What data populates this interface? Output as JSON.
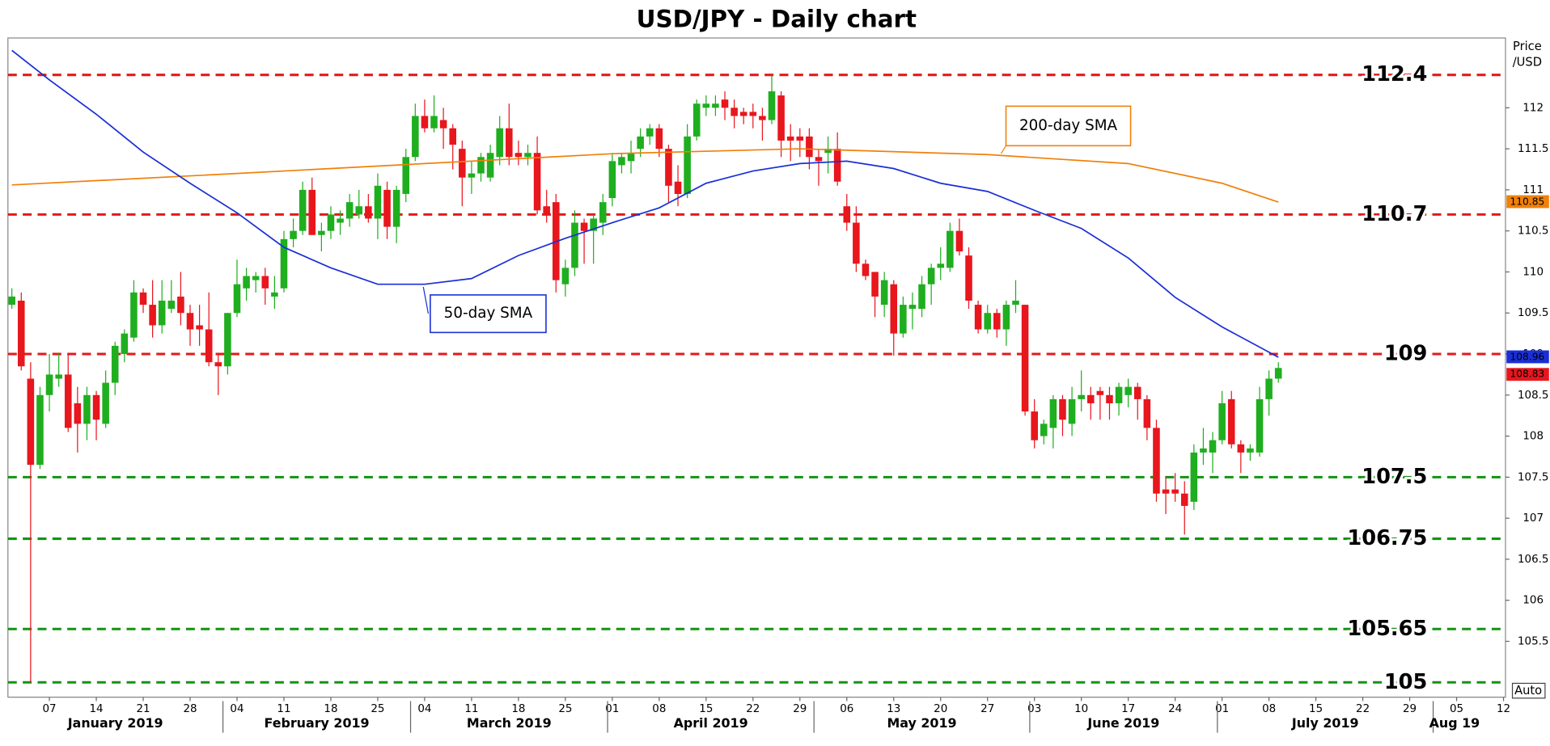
{
  "chart_data": {
    "type": "candlestick",
    "title": "USD/JPY - Daily chart",
    "y_label_lines": [
      "Price",
      "/USD"
    ],
    "scale_mode": "Auto",
    "up_color": "#1fae1f",
    "down_color": "#e8161d",
    "x": [
      "2019-01-01",
      "2019-01-02",
      "2019-01-03",
      "2019-01-04",
      "2019-01-07",
      "2019-01-08",
      "2019-01-09",
      "2019-01-10",
      "2019-01-11",
      "2019-01-14",
      "2019-01-15",
      "2019-01-16",
      "2019-01-17",
      "2019-01-18",
      "2019-01-21",
      "2019-01-22",
      "2019-01-23",
      "2019-01-24",
      "2019-01-25",
      "2019-01-28",
      "2019-01-29",
      "2019-01-30",
      "2019-01-31",
      "2019-02-01",
      "2019-02-04",
      "2019-02-05",
      "2019-02-06",
      "2019-02-07",
      "2019-02-08",
      "2019-02-11",
      "2019-02-12",
      "2019-02-13",
      "2019-02-14",
      "2019-02-15",
      "2019-02-18",
      "2019-02-19",
      "2019-02-20",
      "2019-02-21",
      "2019-02-22",
      "2019-02-25",
      "2019-02-26",
      "2019-02-27",
      "2019-02-28",
      "2019-03-01",
      "2019-03-04",
      "2019-03-05",
      "2019-03-06",
      "2019-03-07",
      "2019-03-08",
      "2019-03-11",
      "2019-03-12",
      "2019-03-13",
      "2019-03-14",
      "2019-03-15",
      "2019-03-18",
      "2019-03-19",
      "2019-03-20",
      "2019-03-21",
      "2019-03-22",
      "2019-03-25",
      "2019-03-26",
      "2019-03-27",
      "2019-03-28",
      "2019-03-29",
      "2019-04-01",
      "2019-04-02",
      "2019-04-03",
      "2019-04-04",
      "2019-04-05",
      "2019-04-08",
      "2019-04-09",
      "2019-04-10",
      "2019-04-11",
      "2019-04-12",
      "2019-04-15",
      "2019-04-16",
      "2019-04-17",
      "2019-04-18",
      "2019-04-19",
      "2019-04-22",
      "2019-04-23",
      "2019-04-24",
      "2019-04-25",
      "2019-04-26",
      "2019-04-29",
      "2019-04-30",
      "2019-05-01",
      "2019-05-02",
      "2019-05-03",
      "2019-05-06",
      "2019-05-07",
      "2019-05-08",
      "2019-05-09",
      "2019-05-10",
      "2019-05-13",
      "2019-05-14",
      "2019-05-15",
      "2019-05-16",
      "2019-05-17",
      "2019-05-20",
      "2019-05-21",
      "2019-05-22",
      "2019-05-23",
      "2019-05-24",
      "2019-05-27",
      "2019-05-28",
      "2019-05-29",
      "2019-05-30",
      "2019-05-31",
      "2019-06-03",
      "2019-06-04",
      "2019-06-05",
      "2019-06-06",
      "2019-06-07",
      "2019-06-10",
      "2019-06-11",
      "2019-06-12",
      "2019-06-13",
      "2019-06-14",
      "2019-06-17",
      "2019-06-18",
      "2019-06-19",
      "2019-06-20",
      "2019-06-21",
      "2019-06-24",
      "2019-06-25",
      "2019-06-26",
      "2019-06-27",
      "2019-06-28",
      "2019-07-01",
      "2019-07-02",
      "2019-07-03",
      "2019-07-04",
      "2019-07-05",
      "2019-07-08",
      "2019-07-09"
    ],
    "open": [
      109.6,
      109.65,
      108.7,
      107.65,
      108.5,
      108.7,
      108.75,
      108.4,
      108.15,
      108.5,
      108.15,
      108.65,
      109.0,
      109.2,
      109.75,
      109.6,
      109.35,
      109.55,
      109.7,
      109.5,
      109.35,
      109.3,
      108.9,
      108.85,
      109.5,
      109.8,
      109.9,
      109.95,
      109.7,
      109.8,
      110.4,
      110.5,
      111.0,
      110.45,
      110.5,
      110.6,
      110.65,
      110.7,
      110.8,
      110.65,
      111.0,
      110.55,
      110.95,
      111.4,
      111.9,
      111.75,
      111.85,
      111.75,
      111.5,
      111.15,
      111.2,
      111.15,
      111.4,
      111.75,
      111.45,
      111.4,
      111.45,
      110.8,
      110.85,
      109.85,
      110.05,
      110.6,
      110.5,
      110.6,
      110.9,
      111.3,
      111.35,
      111.5,
      111.65,
      111.75,
      111.5,
      111.1,
      110.95,
      111.65,
      112.0,
      112.0,
      112.1,
      112.0,
      111.95,
      111.95,
      111.9,
      111.85,
      112.15,
      111.65,
      111.65,
      111.65,
      111.4,
      111.45,
      111.5,
      110.8,
      110.6,
      110.1,
      110.0,
      109.6,
      109.85,
      109.25,
      109.55,
      109.55,
      109.85,
      110.05,
      110.05,
      110.5,
      110.2,
      109.6,
      109.3,
      109.5,
      109.3,
      109.6,
      109.6,
      108.3,
      108.0,
      108.1,
      108.45,
      108.15,
      108.45,
      108.5,
      108.55,
      108.5,
      108.4,
      108.5,
      108.6,
      108.45,
      108.1,
      107.35,
      107.35,
      107.3,
      107.2,
      107.8,
      107.8,
      107.95,
      108.45,
      107.9,
      107.8,
      107.8,
      108.45,
      108.7
    ],
    "high": [
      109.8,
      109.75,
      108.9,
      108.6,
      109.0,
      109.0,
      109.0,
      108.6,
      108.6,
      108.55,
      108.8,
      109.15,
      109.3,
      109.9,
      109.8,
      109.9,
      109.9,
      109.9,
      110.0,
      109.6,
      109.6,
      109.75,
      109.0,
      109.5,
      110.15,
      110.05,
      110.0,
      110.05,
      109.95,
      110.5,
      110.65,
      111.1,
      111.15,
      110.6,
      110.8,
      110.75,
      110.95,
      111.0,
      110.95,
      111.2,
      111.1,
      111.05,
      111.5,
      112.05,
      112.1,
      112.15,
      112.0,
      111.8,
      111.6,
      111.35,
      111.45,
      111.55,
      111.9,
      112.05,
      111.6,
      111.55,
      111.65,
      111.0,
      110.95,
      110.15,
      110.75,
      110.65,
      110.7,
      110.95,
      111.45,
      111.45,
      111.6,
      111.75,
      111.8,
      111.8,
      111.55,
      111.3,
      111.8,
      112.1,
      112.15,
      112.15,
      112.2,
      112.1,
      112.0,
      112.05,
      112.0,
      112.4,
      112.2,
      111.8,
      111.75,
      111.75,
      111.5,
      111.65,
      111.7,
      110.95,
      110.8,
      110.15,
      110.0,
      110.0,
      109.9,
      109.7,
      109.75,
      109.95,
      110.1,
      110.3,
      110.6,
      110.65,
      110.3,
      109.65,
      109.6,
      109.55,
      109.65,
      109.9,
      109.6,
      108.45,
      108.2,
      108.5,
      108.5,
      108.6,
      108.8,
      108.6,
      108.6,
      108.6,
      108.65,
      108.7,
      108.65,
      108.5,
      108.2,
      107.5,
      107.55,
      107.45,
      107.9,
      108.1,
      108.05,
      108.55,
      108.55,
      107.95,
      107.9,
      108.6,
      108.8,
      108.9
    ],
    "low": [
      109.55,
      108.8,
      105,
      107.6,
      108.3,
      108.6,
      108.05,
      107.8,
      107.95,
      107.95,
      108.1,
      108.5,
      108.9,
      109.15,
      109.5,
      109.2,
      109.25,
      109.5,
      109.35,
      109.1,
      109.1,
      108.85,
      108.5,
      108.75,
      109.45,
      109.65,
      109.75,
      109.6,
      109.55,
      109.75,
      110.3,
      110.45,
      110.45,
      110.25,
      110.4,
      110.45,
      110.55,
      110.65,
      110.6,
      110.4,
      110.4,
      110.35,
      110.85,
      111.35,
      111.7,
      111.7,
      111.5,
      111.25,
      110.8,
      110.95,
      111.1,
      111.1,
      111.3,
      111.3,
      111.3,
      111.3,
      110.7,
      110.6,
      109.75,
      109.7,
      109.95,
      110.1,
      110.1,
      110.45,
      110.8,
      111.2,
      111.2,
      111.4,
      111.55,
      111.4,
      110.85,
      110.8,
      110.9,
      111.6,
      111.9,
      111.9,
      111.85,
      111.75,
      111.8,
      111.75,
      111.6,
      111.8,
      111.4,
      111.35,
      111.4,
      111.25,
      111.05,
      111.2,
      111.05,
      110.5,
      110.0,
      109.9,
      109.45,
      109.45,
      108.98,
      109.2,
      109.3,
      109.45,
      109.6,
      109.9,
      110.0,
      110.2,
      109.55,
      109.25,
      109.25,
      109.2,
      109.1,
      109.5,
      108.25,
      107.85,
      107.9,
      107.85,
      108.0,
      108.0,
      108.3,
      108.2,
      108.2,
      108.2,
      108.25,
      108.35,
      108.2,
      107.95,
      107.2,
      107.05,
      107.2,
      106.8,
      107.1,
      107.65,
      107.55,
      107.9,
      107.85,
      107.55,
      107.7,
      107.75,
      108.25,
      108.65
    ],
    "close": [
      109.7,
      108.85,
      107.65,
      108.5,
      108.75,
      108.75,
      108.1,
      108.15,
      108.5,
      108.2,
      108.65,
      109.1,
      109.25,
      109.75,
      109.6,
      109.35,
      109.65,
      109.65,
      109.5,
      109.3,
      109.3,
      108.9,
      108.85,
      109.5,
      109.85,
      109.95,
      109.95,
      109.8,
      109.75,
      110.4,
      110.5,
      111.0,
      110.45,
      110.5,
      110.7,
      110.65,
      110.85,
      110.8,
      110.65,
      111.05,
      110.55,
      111.0,
      111.4,
      111.9,
      111.75,
      111.9,
      111.75,
      111.55,
      111.15,
      111.2,
      111.4,
      111.45,
      111.75,
      111.4,
      111.4,
      111.45,
      110.75,
      110.7,
      109.9,
      110.05,
      110.6,
      110.5,
      110.65,
      110.85,
      111.35,
      111.4,
      111.45,
      111.65,
      111.75,
      111.5,
      111.05,
      110.95,
      111.65,
      112.05,
      112.05,
      112.05,
      112.0,
      111.9,
      111.9,
      111.9,
      111.85,
      112.2,
      111.6,
      111.6,
      111.6,
      111.4,
      111.35,
      111.5,
      111.1,
      110.6,
      110.1,
      109.95,
      109.7,
      109.9,
      109.25,
      109.6,
      109.6,
      109.85,
      110.05,
      110.1,
      110.5,
      110.25,
      109.65,
      109.3,
      109.5,
      109.3,
      109.6,
      109.65,
      108.3,
      107.95,
      108.15,
      108.45,
      108.2,
      108.45,
      108.5,
      108.4,
      108.5,
      108.4,
      108.6,
      108.6,
      108.45,
      108.1,
      107.3,
      107.3,
      107.3,
      107.15,
      107.8,
      107.85,
      107.95,
      108.4,
      107.9,
      107.8,
      107.85,
      108.45,
      108.7,
      108.83
    ],
    "series": [
      {
        "name": "200-day SMA",
        "color": "#f0800a",
        "x": [
          "2019-01-01",
          "2019-02-04",
          "2019-03-04",
          "2019-04-01",
          "2019-04-29",
          "2019-05-27",
          "2019-06-17",
          "2019-07-01",
          "2019-07-09"
        ],
        "values": [
          111.06,
          111.2,
          111.32,
          111.44,
          111.5,
          111.43,
          111.32,
          111.08,
          110.85
        ]
      },
      {
        "name": "50-day SMA",
        "color": "#1a2fd6",
        "x": [
          "2019-01-01",
          "2019-01-07",
          "2019-01-14",
          "2019-01-21",
          "2019-01-28",
          "2019-02-04",
          "2019-02-11",
          "2019-02-18",
          "2019-02-25",
          "2019-03-04",
          "2019-03-11",
          "2019-03-18",
          "2019-03-25",
          "2019-04-01",
          "2019-04-08",
          "2019-04-15",
          "2019-04-22",
          "2019-04-29",
          "2019-05-06",
          "2019-05-13",
          "2019-05-20",
          "2019-05-27",
          "2019-06-03",
          "2019-06-10",
          "2019-06-17",
          "2019-06-24",
          "2019-07-01",
          "2019-07-09"
        ],
        "values": [
          112.7,
          112.34,
          111.92,
          111.46,
          111.08,
          110.72,
          110.3,
          110.05,
          109.85,
          109.85,
          109.92,
          110.2,
          110.41,
          110.6,
          110.78,
          111.08,
          111.23,
          111.32,
          111.35,
          111.26,
          111.08,
          110.98,
          110.75,
          110.53,
          110.17,
          109.69,
          109.33,
          108.96
        ]
      }
    ],
    "levels": [
      {
        "value": 112.4,
        "color": "#e31a1a"
      },
      {
        "value": 110.7,
        "color": "#e31a1a"
      },
      {
        "value": 109,
        "color": "#e31a1a"
      },
      {
        "value": 107.5,
        "color": "#139313"
      },
      {
        "value": 106.75,
        "color": "#139313"
      },
      {
        "value": 105.65,
        "color": "#139313"
      },
      {
        "value": 105,
        "color": "#139313"
      }
    ],
    "ylim": [
      104.82,
      112.85
    ],
    "yticks": [
      105.5,
      106,
      106.5,
      107,
      107.5,
      108,
      108.5,
      109,
      109.5,
      110,
      110.5,
      111,
      111.5,
      112
    ],
    "xlim": [
      "2019-01-01",
      "2019-08-12"
    ],
    "xticks": [
      {
        "value": "2019-01-07",
        "label": "07"
      },
      {
        "value": "2019-01-14",
        "label": "14"
      },
      {
        "value": "2019-01-21",
        "label": "21"
      },
      {
        "value": "2019-01-28",
        "label": "28"
      },
      {
        "value": "2019-02-04",
        "label": "04"
      },
      {
        "value": "2019-02-11",
        "label": "11"
      },
      {
        "value": "2019-02-18",
        "label": "18"
      },
      {
        "value": "2019-02-25",
        "label": "25"
      },
      {
        "value": "2019-03-04",
        "label": "04"
      },
      {
        "value": "2019-03-11",
        "label": "11"
      },
      {
        "value": "2019-03-18",
        "label": "18"
      },
      {
        "value": "2019-03-25",
        "label": "25"
      },
      {
        "value": "2019-04-01",
        "label": "01"
      },
      {
        "value": "2019-04-08",
        "label": "08"
      },
      {
        "value": "2019-04-15",
        "label": "15"
      },
      {
        "value": "2019-04-22",
        "label": "22"
      },
      {
        "value": "2019-04-29",
        "label": "29"
      },
      {
        "value": "2019-05-06",
        "label": "06"
      },
      {
        "value": "2019-05-13",
        "label": "13"
      },
      {
        "value": "2019-05-20",
        "label": "20"
      },
      {
        "value": "2019-05-27",
        "label": "27"
      },
      {
        "value": "2019-06-03",
        "label": "03"
      },
      {
        "value": "2019-06-10",
        "label": "10"
      },
      {
        "value": "2019-06-17",
        "label": "17"
      },
      {
        "value": "2019-06-24",
        "label": "24"
      },
      {
        "value": "2019-07-01",
        "label": "01"
      },
      {
        "value": "2019-07-08",
        "label": "08"
      },
      {
        "value": "2019-07-15",
        "label": "15"
      },
      {
        "value": "2019-07-22",
        "label": "22"
      },
      {
        "value": "2019-07-29",
        "label": "29"
      },
      {
        "value": "2019-08-05",
        "label": "05"
      },
      {
        "value": "2019-08-12",
        "label": "12"
      }
    ],
    "month_ticks": [
      {
        "value": "2019-01",
        "label": "January 2019"
      },
      {
        "value": "2019-02",
        "label": "February 2019"
      },
      {
        "value": "2019-03",
        "label": "March 2019"
      },
      {
        "value": "2019-04",
        "label": "April 2019"
      },
      {
        "value": "2019-05",
        "label": "May 2019"
      },
      {
        "value": "2019-06",
        "label": "June 2019"
      },
      {
        "value": "2019-07",
        "label": "July 2019"
      },
      {
        "value": "2019-08",
        "label": "Aug 19"
      }
    ]
  }
}
